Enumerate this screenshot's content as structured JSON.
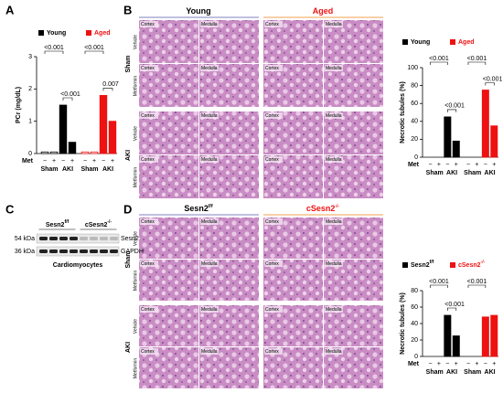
{
  "panels": [
    "A",
    "B",
    "C",
    "D"
  ],
  "chart_data": [
    {
      "type": "bar",
      "ylabel": "PCr (mg/dL)",
      "ylim": [
        0,
        3
      ],
      "yticks": [
        0,
        1,
        2,
        3
      ],
      "groups": [
        "Sham",
        "AKI"
      ],
      "met_label": "Met",
      "met": [
        "−",
        "+"
      ],
      "series": [
        {
          "name": "Young",
          "color": "#000000",
          "values": [
            0.05,
            0.05,
            1.5,
            0.35
          ],
          "p_values": [
            "<0.001",
            "<0.001"
          ]
        },
        {
          "name": "Aged",
          "color": "#ee1111",
          "values": [
            0.05,
            0.05,
            1.8,
            1.0
          ],
          "p_values": [
            "<0.001",
            "0.007"
          ]
        }
      ]
    },
    {
      "type": "bar",
      "ylabel": "Necrotic tubules (%)",
      "ylim": [
        0,
        100
      ],
      "yticks": [
        0,
        20,
        40,
        60,
        80,
        100
      ],
      "groups": [
        "Sham",
        "AKI"
      ],
      "met_label": "Met",
      "met": [
        "−",
        "+"
      ],
      "series": [
        {
          "name": "Young",
          "color": "#000000",
          "values": [
            0,
            0,
            45,
            18
          ],
          "p_values": [
            "<0.001",
            "<0.001"
          ]
        },
        {
          "name": "Aged",
          "color": "#ee1111",
          "values": [
            0,
            0,
            75,
            35
          ],
          "p_values": [
            "<0.001",
            "<0.001"
          ]
        }
      ]
    },
    {
      "type": "bar",
      "ylabel": "Necrotic tubules (%)",
      "ylim": [
        0,
        80
      ],
      "yticks": [
        0,
        20,
        40,
        60,
        80
      ],
      "groups": [
        "Sham",
        "AKI"
      ],
      "met_label": "Met",
      "met": [
        "−",
        "+"
      ],
      "series": [
        {
          "name": "Sesn2",
          "name_sup": "f/f",
          "color": "#000000",
          "values": [
            0,
            0,
            50,
            25
          ],
          "p_values": [
            "<0.001",
            "<0.001"
          ]
        },
        {
          "name": "cSesn2",
          "name_sup": "-/-",
          "color": "#ee1111",
          "values": [
            0,
            0,
            48,
            50
          ],
          "p_values": [
            "<0.001"
          ]
        }
      ]
    }
  ],
  "histology_b": {
    "columns": [
      {
        "title": "Young",
        "color": "#000000"
      },
      {
        "title": "Aged",
        "color": "#ee1111"
      }
    ],
    "tissues": [
      "Cortex",
      "Medulla"
    ],
    "groups": [
      "Sham",
      "AKI"
    ],
    "treatments": [
      "Vehicle",
      "Metformin"
    ]
  },
  "histology_d": {
    "columns": [
      {
        "title": "Sesn2",
        "sup": "f/f",
        "color": "#000000"
      },
      {
        "title": "cSesn2",
        "sup": "-/-",
        "color": "#ee1111"
      }
    ],
    "tissues": [
      "Cortex",
      "Medulla"
    ],
    "groups": [
      "Sham",
      "AKI"
    ],
    "treatments": [
      "Vehicle",
      "Metformin"
    ]
  },
  "blot_c": {
    "lanes": [
      {
        "title": "Sesn2",
        "sup": "f/f"
      },
      {
        "title": "cSesn2",
        "sup": "-/-"
      }
    ],
    "bands": [
      {
        "size": "54 kDa",
        "protein": "Sesn2"
      },
      {
        "size": "36 kDa",
        "protein": "GAPDH"
      }
    ],
    "caption": "Cardiomyocytes"
  }
}
